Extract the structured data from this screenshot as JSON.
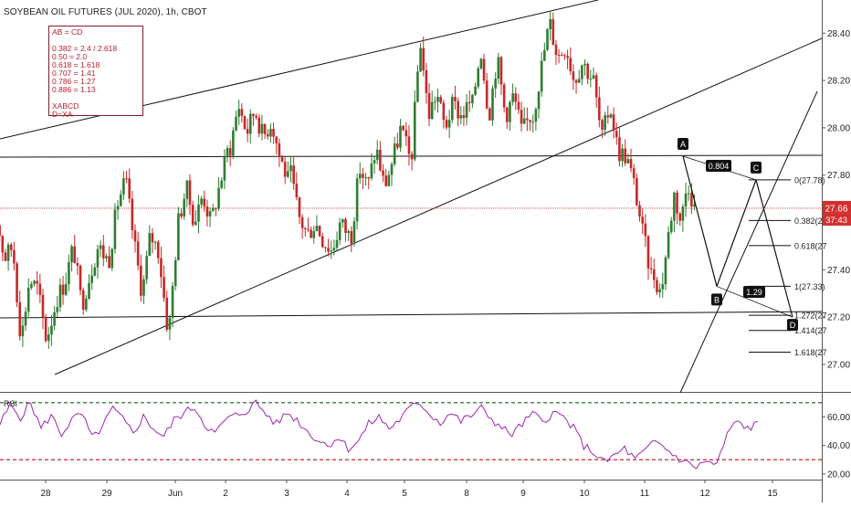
{
  "header": {
    "symbol_title": "SOYBEAN OIL FUTURES (JUL 2020), 1h, CBOT"
  },
  "info_box": {
    "lines": [
      "AB = CD",
      "",
      "0.382 = 2.4 / 2.618",
      "0.50 = 2.0",
      "0.618 = 1.618",
      "0.707 = 1.41",
      "0.786 = 1.27",
      "0.886 = 1.13",
      "",
      "XABCD",
      "D=XA"
    ]
  },
  "price_axis": {
    "ticks": [
      "28.40",
      "28.20",
      "28.00",
      "27.80",
      "27.60",
      "27.40",
      "27.20",
      "27.00"
    ],
    "last_price_label": "27.66",
    "countdown_label": "37:43"
  },
  "time_axis": {
    "ticks": [
      "28",
      "29",
      "Jun",
      "2",
      "3",
      "4",
      "5",
      "8",
      "9",
      "10",
      "11",
      "12",
      "15"
    ]
  },
  "rsi_panel": {
    "label": "RSI",
    "ticks": [
      "60.00",
      "40.00",
      "20.00"
    ]
  },
  "pattern": {
    "points": [
      "A",
      "B",
      "C",
      "D"
    ],
    "ratio_labels": [
      "0.804",
      "1.29"
    ],
    "fib_levels": [
      "0(27.78)",
      "0.382(27",
      "0.618(27",
      "1(27.33)",
      "1.272(27",
      "1.414(27",
      "1.618(27"
    ]
  },
  "colors": {
    "up": "#2e7d32",
    "down": "#c62828",
    "rsi": "#9c27b0",
    "rsi_upper": "#1b5e20",
    "rsi_lower": "#c62828",
    "price_line": "#d32f2f"
  },
  "chart_data": {
    "type": "candlestick",
    "title": "SOYBEAN OIL FUTURES (JUL 2020), 1h, CBOT",
    "y_range": [
      26.88,
      28.54
    ],
    "last_price": 27.66,
    "x_sessions": [
      "28",
      "29",
      "Jun",
      "2",
      "3",
      "4",
      "5",
      "8",
      "9",
      "10",
      "11",
      "12"
    ],
    "session_path": [
      [
        27.15,
        27.62,
        27.45,
        27.5,
        27.1,
        27.36,
        27.32,
        27.12
      ],
      [
        27.14,
        27.28,
        27.35,
        27.5,
        27.25,
        27.38,
        27.5,
        27.45
      ],
      [
        27.45,
        27.68,
        27.78,
        27.52,
        27.3,
        27.55,
        27.48,
        27.18
      ],
      [
        27.18,
        27.6,
        27.75,
        27.6,
        27.72,
        27.6,
        27.75,
        27.9
      ],
      [
        27.92,
        28.1,
        27.98,
        28.08,
        27.96,
        28.03,
        27.88,
        27.78
      ],
      [
        27.8,
        27.62,
        27.55,
        27.6,
        27.52,
        27.48,
        27.6,
        27.55
      ],
      [
        27.55,
        27.83,
        27.75,
        27.92,
        27.75,
        27.86,
        28.0,
        27.88
      ],
      [
        27.9,
        28.38,
        28.05,
        28.15,
        28.0,
        28.1,
        28.05,
        28.1
      ],
      [
        28.1,
        28.34,
        28.05,
        28.3,
        28.05,
        28.14,
        27.98,
        28.05
      ],
      [
        28.05,
        28.25,
        28.45,
        28.3,
        28.35,
        28.2,
        28.28,
        28.22
      ],
      [
        28.2,
        27.95,
        28.1,
        27.9,
        27.88,
        27.75,
        27.55,
        27.38
      ],
      [
        27.38,
        27.3,
        27.52,
        27.72,
        27.6,
        27.78,
        27.66
      ]
    ],
    "pattern_points": {
      "A": 27.88,
      "B": 27.33,
      "C": 27.78,
      "D": 27.2
    },
    "fib_levels": [
      0,
      0.382,
      0.618,
      1,
      1.272,
      1.414,
      1.618
    ],
    "rsi": {
      "range": [
        18,
        75
      ],
      "upper": 70,
      "lower": 30,
      "path": [
        55,
        68,
        60,
        70,
        52,
        61,
        48,
        58,
        62,
        45,
        53,
        66,
        58,
        49,
        60,
        52,
        46,
        58,
        63,
        67,
        55,
        48,
        58,
        61,
        64,
        70,
        62,
        55,
        63,
        58,
        50,
        44,
        40,
        46,
        38,
        43,
        55,
        60,
        52,
        58,
        66,
        70,
        62,
        56,
        63,
        57,
        61,
        66,
        59,
        52,
        48,
        55,
        62,
        57,
        63,
        60,
        52,
        40,
        35,
        28,
        33,
        38,
        30,
        36,
        43,
        38,
        32,
        28,
        25,
        29,
        26,
        48,
        57,
        52,
        55
      ]
    }
  }
}
